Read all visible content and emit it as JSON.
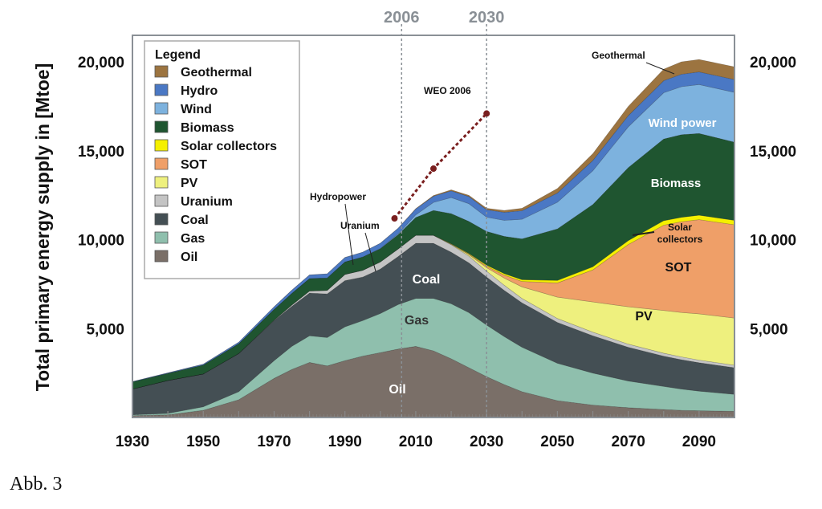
{
  "caption": "Abb. 3",
  "chart_data": {
    "type": "area",
    "ylabel": "Total primary energy supply in [Mtoe]",
    "xlim": [
      1930,
      2100
    ],
    "ylim": [
      0,
      21500
    ],
    "x_ticks": [
      1930,
      1950,
      1970,
      1990,
      2010,
      2030,
      2050,
      2070,
      2090
    ],
    "y_ticks": [
      5000,
      10000,
      15000,
      20000
    ],
    "y_tick_labels": [
      "5,000",
      "10,000",
      "15,000",
      "20,000"
    ],
    "legend": {
      "title": "Legend",
      "position": "top-left",
      "entries": [
        "Geothermal",
        "Hydro",
        "Wind",
        "Biomass",
        "Solar collectors",
        "SOT",
        "PV",
        "Uranium",
        "Coal",
        "Gas",
        "Oil"
      ]
    },
    "colors": {
      "Oil": "#7a6f68",
      "Gas": "#8fbfad",
      "Coal": "#444f54",
      "Uranium": "#c4c4c4",
      "PV": "#eef07e",
      "SOT": "#ef9f68",
      "Solar collectors": "#f5f000",
      "Biomass": "#1f5530",
      "Wind": "#7db2de",
      "Hydro": "#4a78c4",
      "Geothermal": "#9c7440"
    },
    "x": [
      1930,
      1940,
      1950,
      1960,
      1970,
      1975,
      1980,
      1985,
      1990,
      1995,
      2000,
      2005,
      2010,
      2015,
      2020,
      2025,
      2030,
      2035,
      2040,
      2050,
      2060,
      2070,
      2080,
      2085,
      2090,
      2100
    ],
    "series": [
      {
        "name": "Oil",
        "values": [
          100,
          150,
          400,
          1000,
          2200,
          2700,
          3100,
          2900,
          3200,
          3450,
          3650,
          3850,
          4000,
          3750,
          3300,
          2800,
          2300,
          1850,
          1450,
          950,
          700,
          550,
          450,
          400,
          380,
          350
        ]
      },
      {
        "name": "Gas",
        "values": [
          50,
          80,
          200,
          450,
          1000,
          1300,
          1500,
          1600,
          1900,
          2000,
          2200,
          2500,
          2700,
          2950,
          3100,
          3100,
          2900,
          2700,
          2500,
          2100,
          1800,
          1500,
          1300,
          1200,
          1100,
          950
        ]
      },
      {
        "name": "Coal",
        "values": [
          1450,
          1850,
          1850,
          2150,
          2250,
          2250,
          2400,
          2450,
          2600,
          2450,
          2500,
          2700,
          3100,
          3100,
          2900,
          2800,
          2700,
          2600,
          2500,
          2300,
          2100,
          1900,
          1700,
          1650,
          1600,
          1500
        ]
      },
      {
        "name": "Uranium",
        "values": [
          0,
          0,
          0,
          0,
          30,
          80,
          120,
          200,
          350,
          380,
          400,
          430,
          450,
          450,
          420,
          380,
          330,
          290,
          250,
          220,
          200,
          180,
          170,
          160,
          150,
          140
        ]
      },
      {
        "name": "PV",
        "values": [
          0,
          0,
          0,
          0,
          0,
          0,
          0,
          0,
          0,
          0,
          0,
          0,
          0,
          0,
          20,
          80,
          200,
          400,
          650,
          1200,
          1700,
          2100,
          2400,
          2500,
          2600,
          2650
        ]
      },
      {
        "name": "SOT",
        "values": [
          0,
          0,
          0,
          0,
          0,
          0,
          0,
          0,
          0,
          0,
          0,
          0,
          0,
          0,
          10,
          30,
          80,
          170,
          300,
          800,
          1800,
          3500,
          4800,
          5100,
          5300,
          5250
        ]
      },
      {
        "name": "Solar collectors",
        "values": [
          0,
          0,
          0,
          0,
          0,
          0,
          0,
          0,
          0,
          0,
          0,
          0,
          0,
          0,
          20,
          40,
          60,
          80,
          100,
          140,
          180,
          220,
          250,
          250,
          250,
          250
        ]
      },
      {
        "name": "Biomass",
        "values": [
          400,
          400,
          500,
          550,
          600,
          650,
          700,
          700,
          700,
          750,
          750,
          800,
          1000,
          1400,
          1700,
          1800,
          1900,
          2100,
          2300,
          2900,
          3500,
          4100,
          4600,
          4650,
          4600,
          4400
        ]
      },
      {
        "name": "Wind",
        "values": [
          0,
          0,
          0,
          0,
          0,
          0,
          0,
          0,
          0,
          0,
          10,
          50,
          150,
          450,
          900,
          1000,
          800,
          900,
          1100,
          1500,
          1900,
          2300,
          2600,
          2700,
          2750,
          2800
        ]
      },
      {
        "name": "Hydro",
        "values": [
          20,
          30,
          50,
          80,
          150,
          180,
          200,
          230,
          250,
          270,
          290,
          310,
          330,
          350,
          380,
          400,
          420,
          450,
          480,
          520,
          580,
          630,
          680,
          700,
          710,
          720
        ]
      },
      {
        "name": "Geothermal",
        "values": [
          0,
          0,
          0,
          0,
          0,
          0,
          0,
          0,
          0,
          0,
          0,
          0,
          20,
          40,
          60,
          70,
          80,
          110,
          140,
          250,
          380,
          520,
          650,
          700,
          700,
          720
        ]
      }
    ],
    "weo_line": {
      "label": "WEO 2006",
      "x": [
        2004,
        2015,
        2030
      ],
      "y": [
        11200,
        14000,
        17100
      ],
      "color": "#7a1f1f"
    },
    "reference_lines": [
      {
        "x": 2006,
        "label": "2006"
      },
      {
        "x": 2030,
        "label": "2030"
      }
    ],
    "annotations": {
      "hydropower": "Hydropower",
      "uranium": "Uranium",
      "geothermal": "Geothermal",
      "wind_power": "Wind power",
      "biomass": "Biomass",
      "solar_collectors_line1": "Solar",
      "solar_collectors_line2": "collectors",
      "sot": "SOT",
      "pv": "PV",
      "coal": "Coal",
      "gas": "Gas",
      "oil": "Oil"
    }
  }
}
